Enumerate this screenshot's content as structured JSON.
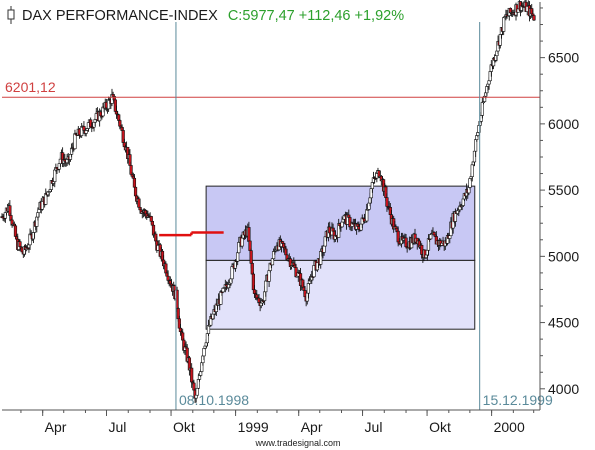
{
  "colors": {
    "background": "#ffffff",
    "axis": "#555555",
    "price": "#111111",
    "down_candle": "#c8141e",
    "ref_line": "#d04040",
    "vline": "#5a8a9a",
    "date_label": "#5a8a9a",
    "box_inner_fill": "#c8c8f4",
    "box_outer_fill": "#e2e2fa",
    "box_stroke": "#222222",
    "horizontal_marker": "#e01010",
    "title_main": "#1a1a1a",
    "title_change": "#2ca02c"
  },
  "header": {
    "icon": "candle-icon",
    "name": "DAX PERFORMANCE-INDEX",
    "quote": "C:5977,47 +112,46 +1,92%"
  },
  "watermark": "www.tradesignal.com",
  "chart_data": {
    "type": "candlestick",
    "title": "DAX PERFORMANCE-INDEX",
    "x_axis_labels": [
      "Apr",
      "Jul",
      "Okt",
      "1999",
      "Apr",
      "Jul",
      "Okt",
      "2000"
    ],
    "x_axis_label_dates": [
      "1998-04",
      "1998-07",
      "1998-10",
      "1999-01",
      "1999-04",
      "1999-07",
      "1999-10",
      "2000-01"
    ],
    "y_ticks": [
      4000,
      4500,
      5000,
      5500,
      6000,
      6500
    ],
    "y_tick_labels": [
      "4000",
      "4500",
      "5000",
      "5500",
      "6000",
      "6500"
    ],
    "ylim": [
      3840,
      6920
    ],
    "xlim": [
      "1998-02-02",
      "2000-03-10"
    ],
    "grid": false,
    "reference_line": {
      "value": 6201.12,
      "label": "6201,12"
    },
    "vertical_markers": [
      {
        "date": "1998-10-08",
        "label": "08.10.1998"
      },
      {
        "date": "1999-12-15",
        "label": "15.12.1999"
      }
    ],
    "boxes": [
      {
        "name": "inner",
        "x_start": "1998-11-20",
        "x_end": "1999-12-08",
        "y_low": 4970,
        "y_high": 5530
      },
      {
        "name": "outer",
        "x_start": "1998-11-20",
        "x_end": "1999-12-08",
        "y_low": 4450,
        "y_high": 4970
      }
    ],
    "horizontal_marker": {
      "segments": [
        {
          "x_start": "1998-09-14",
          "x_end": "1998-10-30",
          "y": 5160
        },
        {
          "x_start": "1998-10-30",
          "x_end": "1998-12-15",
          "y": 5180
        }
      ]
    },
    "series": [
      {
        "x": [
          "1998-02-02",
          "1998-02-12",
          "1998-02-23",
          "1998-03-05",
          "1998-03-16",
          "1998-03-26",
          "1998-04-06",
          "1998-04-16",
          "1998-04-27",
          "1998-05-07",
          "1998-05-18",
          "1998-05-28",
          "1998-06-08",
          "1998-06-18",
          "1998-06-29",
          "1998-07-09",
          "1998-07-20",
          "1998-07-30",
          "1998-08-10",
          "1998-08-20",
          "1998-08-31",
          "1998-09-10",
          "1998-09-21",
          "1998-10-01",
          "1998-10-08",
          "1998-10-15",
          "1998-10-26",
          "1998-11-05",
          "1998-11-16",
          "1998-11-26",
          "1998-12-07",
          "1998-12-17",
          "1998-12-28",
          "1999-01-07",
          "1999-01-18",
          "1999-01-28",
          "1999-02-08",
          "1999-02-18",
          "1999-03-01",
          "1999-03-11",
          "1999-03-22",
          "1999-04-01",
          "1999-04-12",
          "1999-04-22",
          "1999-05-03",
          "1999-05-13",
          "1999-05-24",
          "1999-06-03",
          "1999-06-14",
          "1999-06-24",
          "1999-07-05",
          "1999-07-15",
          "1999-07-26",
          "1999-08-05",
          "1999-08-16",
          "1999-08-26",
          "1999-09-06",
          "1999-09-16",
          "1999-09-27",
          "1999-10-07",
          "1999-10-18",
          "1999-10-28",
          "1999-11-08",
          "1999-11-18",
          "1999-11-29",
          "1999-12-09",
          "1999-12-20",
          "1999-12-30",
          "2000-01-10",
          "2000-01-20",
          "2000-01-31",
          "2000-02-10",
          "2000-02-21",
          "2000-03-02"
        ],
        "y": [
          5300,
          5380,
          5100,
          5020,
          5150,
          5350,
          5450,
          5600,
          5750,
          5700,
          5900,
          5950,
          6000,
          6050,
          6120,
          6201,
          6000,
          5800,
          5500,
          5350,
          5300,
          5100,
          4950,
          4800,
          4700,
          4400,
          4200,
          3900,
          4300,
          4500,
          4650,
          4750,
          4900,
          5100,
          5200,
          4700,
          4650,
          4900,
          5100,
          5050,
          4950,
          4850,
          4700,
          4900,
          5000,
          5200,
          5150,
          5300,
          5250,
          5200,
          5300,
          5550,
          5650,
          5400,
          5200,
          5100,
          5100,
          5150,
          5000,
          5150,
          5100,
          5100,
          5300,
          5400,
          5500,
          5850,
          6150,
          6400,
          6600,
          6800,
          6850,
          6900,
          6870,
          6800
        ]
      }
    ]
  }
}
